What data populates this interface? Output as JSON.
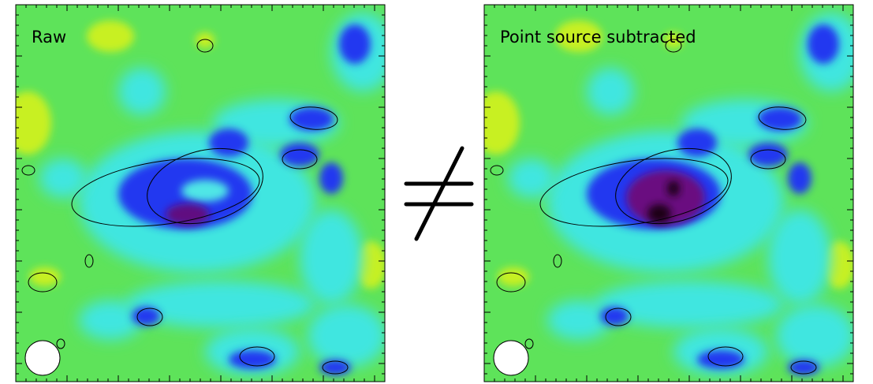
{
  "panels": [
    {
      "label": "Raw"
    },
    {
      "label": "Point source subtracted"
    }
  ]
}
